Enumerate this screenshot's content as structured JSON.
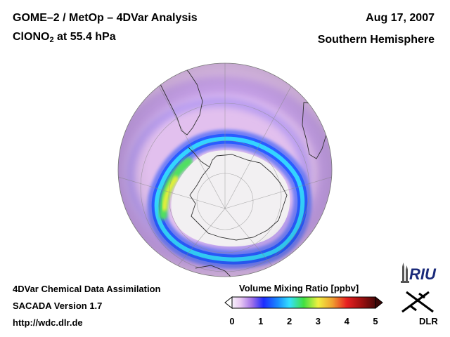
{
  "header": {
    "title_line1": "GOME–2 / MetOp – 4DVar Analysis",
    "species_main": "ClONO",
    "species_sub": "2",
    "species_rest": " at 55.4 hPa",
    "date": "Aug 17, 2007",
    "region": "Southern Hemisphere"
  },
  "footer": {
    "line1": "4DVar Chemical Data Assimilation",
    "line2": "SACADA Version 1.7",
    "line3": "http://wdc.dlr.de"
  },
  "colorbar": {
    "title": "Volume Mixing Ratio [ppbv]",
    "ticks": [
      "0",
      "1",
      "2",
      "3",
      "4",
      "5"
    ],
    "min": 0,
    "max": 5
  },
  "logos": {
    "riu": "RIU",
    "dlr": "DLR"
  },
  "colors": {
    "background_field": "#e0b8ec",
    "polar_low": "#f2f0f2",
    "ring_blue": "#2a5cff",
    "ring_cyan": "#34d4ff",
    "ring_green": "#50e060",
    "ring_yellow": "#f2f038"
  }
}
